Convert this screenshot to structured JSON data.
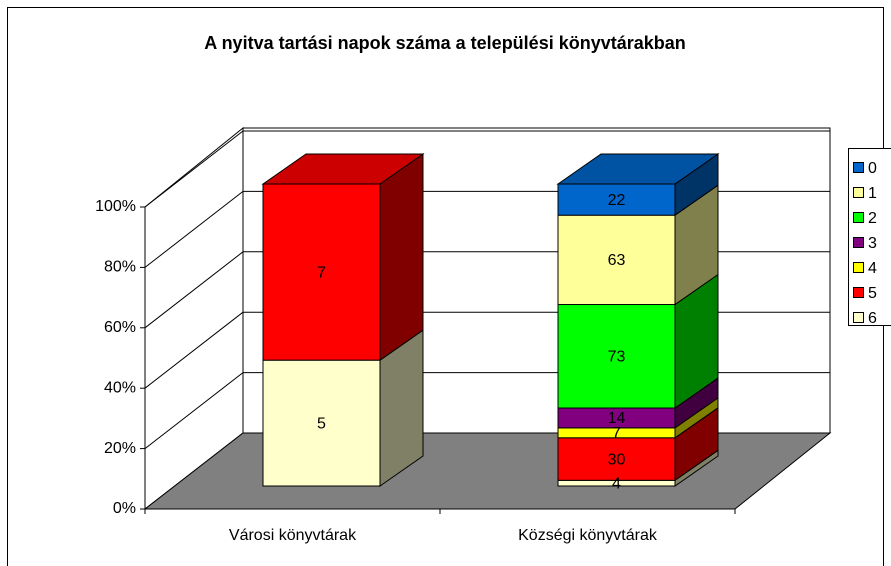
{
  "chart_data": {
    "type": "bar",
    "stacking": "percent",
    "title": "A nyitva tartási napok száma a települési könyvtárakban",
    "categories": [
      "Városi könyvtárak",
      "Községi könyvtárak"
    ],
    "series": [
      {
        "name": "0",
        "color": "#0066cc",
        "values": [
          null,
          22
        ]
      },
      {
        "name": "1",
        "color": "#ffff99",
        "values": [
          null,
          63
        ]
      },
      {
        "name": "2",
        "color": "#00ff00",
        "values": [
          null,
          73
        ]
      },
      {
        "name": "3",
        "color": "#800080",
        "values": [
          null,
          14
        ]
      },
      {
        "name": "4",
        "color": "#ffff00",
        "values": [
          null,
          7
        ]
      },
      {
        "name": "5",
        "color": "#ff0000",
        "values": [
          7,
          30
        ]
      },
      {
        "name": "6",
        "color": "#ffffcc",
        "values": [
          5,
          4
        ]
      }
    ],
    "ylim": [
      0,
      100
    ],
    "yticks": [
      {
        "value": 0,
        "label": "0%"
      },
      {
        "value": 20,
        "label": "20%"
      },
      {
        "value": 40,
        "label": "40%"
      },
      {
        "value": 60,
        "label": "60%"
      },
      {
        "value": 80,
        "label": "80%"
      },
      {
        "value": 100,
        "label": "100%"
      }
    ],
    "grid": true,
    "legend": "right"
  }
}
